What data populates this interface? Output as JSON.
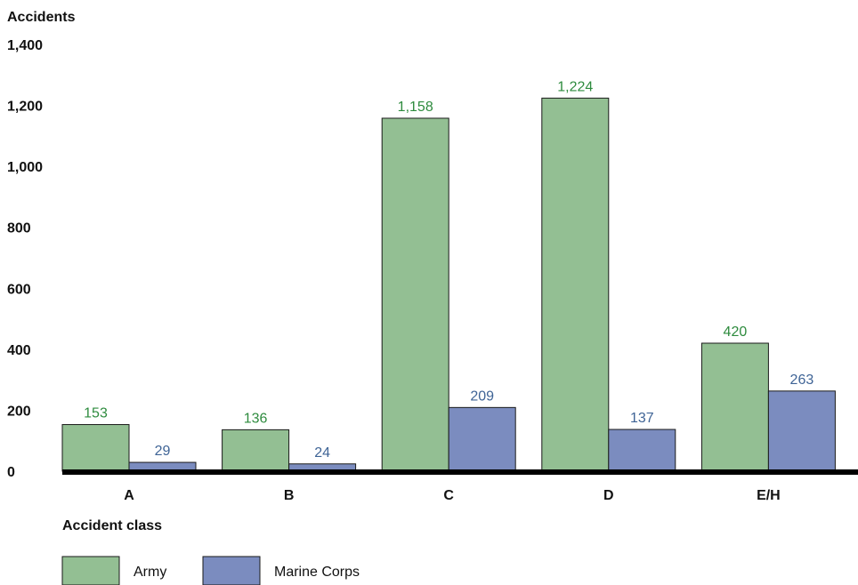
{
  "chart_data": {
    "type": "bar",
    "title": "",
    "ylabel": "Accidents",
    "xlabel": "Accident class",
    "categories": [
      "A",
      "B",
      "C",
      "D",
      "E/H"
    ],
    "series": [
      {
        "name": "Army",
        "values": [
          153,
          136,
          1158,
          1224,
          420
        ],
        "labels": [
          "153",
          "136",
          "1,158",
          "1,224",
          "420"
        ],
        "color": "#93bf93",
        "label_color": "#2e8b3e"
      },
      {
        "name": "Marine Corps",
        "values": [
          29,
          24,
          209,
          137,
          263
        ],
        "labels": [
          "29",
          "24",
          "209",
          "137",
          "263"
        ],
        "color": "#7b8cbf",
        "label_color": "#3f6496"
      }
    ],
    "ylim": [
      0,
      1400
    ],
    "yticks": [
      0,
      200,
      400,
      600,
      800,
      1000,
      1200,
      1400
    ],
    "ytick_labels": [
      "0",
      "200",
      "400",
      "600",
      "800",
      "1,000",
      "1,200",
      "1,400"
    ],
    "grid": false,
    "legend_position": "bottom-left"
  }
}
